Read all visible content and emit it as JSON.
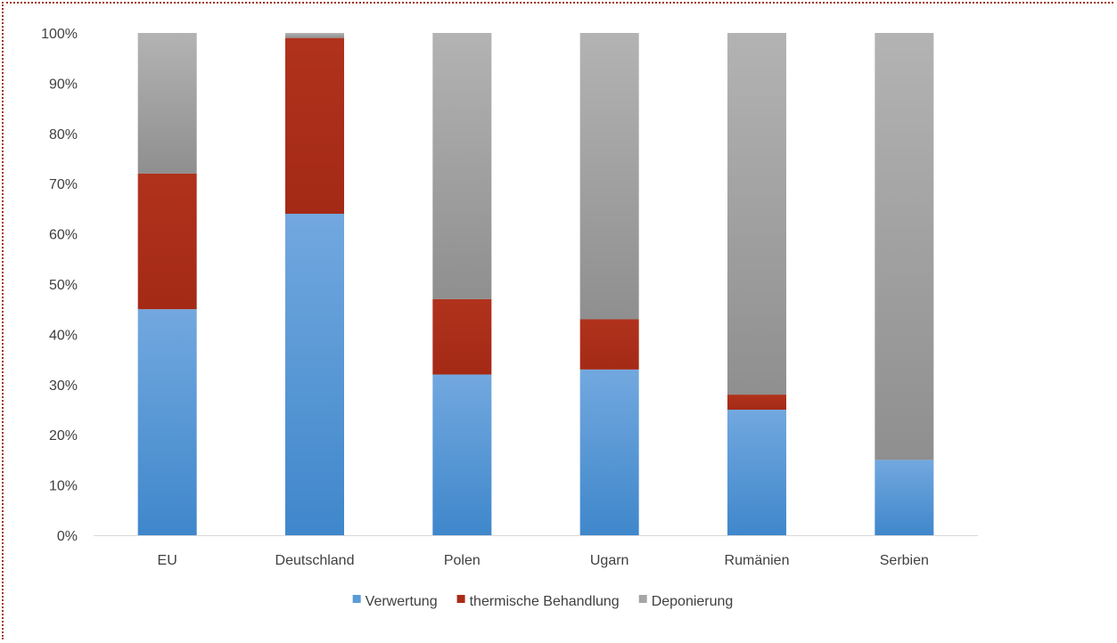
{
  "chart_data": {
    "type": "bar",
    "stacked": true,
    "categories": [
      "EU",
      "Deutschland",
      "Polen",
      "Ugarn",
      "Rumänien",
      "Serbien"
    ],
    "series": [
      {
        "name": "Verwertung",
        "values": [
          45,
          64,
          32,
          33,
          25,
          15
        ],
        "color": "#5b9bd5"
      },
      {
        "name": "thermische Behandlung",
        "values": [
          27,
          35,
          15,
          10,
          3,
          0
        ],
        "color": "#a82c18"
      },
      {
        "name": "Deponierung",
        "values": [
          28,
          1,
          53,
          57,
          72,
          85
        ],
        "color": "#a5a5a5"
      }
    ],
    "ylim": [
      0,
      100
    ],
    "yticks": [
      0,
      10,
      20,
      30,
      40,
      50,
      60,
      70,
      80,
      90,
      100
    ],
    "ytick_format": "{v}%",
    "title": "",
    "xlabel": "",
    "ylabel": "",
    "legend_position": "bottom"
  }
}
